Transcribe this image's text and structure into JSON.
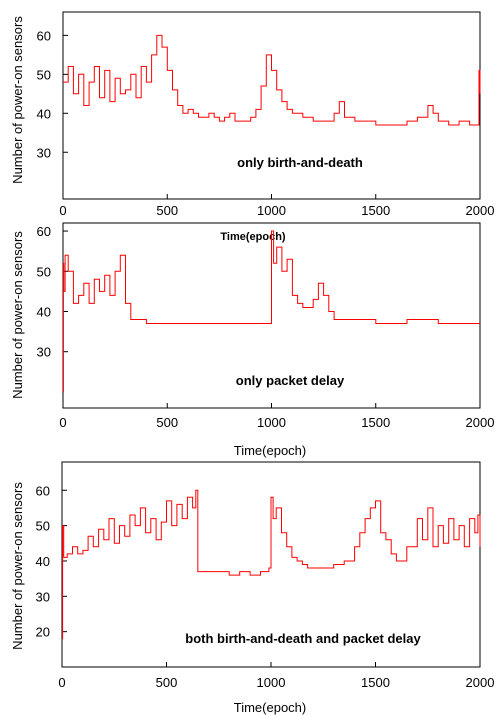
{
  "chart_data": [
    {
      "type": "line",
      "ylabel": "Number of power-on sensors",
      "xlabel": "",
      "annotation": "only birth-and-death",
      "xlim": [
        0,
        2000
      ],
      "ylim": [
        18,
        66
      ],
      "xticks": [
        "0",
        "500",
        "1000",
        "1500",
        "2000"
      ],
      "yticks": [
        "30",
        "40",
        "50",
        "60"
      ],
      "series": [
        {
          "color": "#ff0000",
          "x": [
            0,
            25,
            50,
            75,
            100,
            125,
            150,
            175,
            200,
            225,
            250,
            275,
            300,
            325,
            350,
            375,
            400,
            425,
            450,
            475,
            500,
            525,
            550,
            575,
            600,
            625,
            650,
            675,
            700,
            725,
            750,
            775,
            800,
            825,
            850,
            875,
            900,
            925,
            950,
            975,
            1000,
            1025,
            1050,
            1075,
            1100,
            1150,
            1200,
            1250,
            1300,
            1325,
            1350,
            1400,
            1450,
            1500,
            1550,
            1600,
            1650,
            1700,
            1750,
            1775,
            1800,
            1850,
            1900,
            1950,
            1990,
            1995,
            2000
          ],
          "y": [
            48,
            52,
            45,
            50,
            42,
            48,
            52,
            44,
            51,
            43,
            49,
            45,
            46,
            50,
            44,
            52,
            48,
            55,
            60,
            57,
            51,
            46,
            42,
            40,
            41,
            40,
            39,
            39,
            40,
            39,
            38,
            39,
            40,
            38,
            38,
            38,
            39,
            41,
            47,
            55,
            51,
            46,
            43,
            41,
            40,
            39,
            38,
            38,
            40,
            43,
            39,
            38,
            38,
            37,
            37,
            37,
            38,
            39,
            42,
            40,
            38,
            37,
            38,
            37,
            37,
            51,
            45
          ]
        }
      ]
    },
    {
      "type": "line",
      "ylabel": "Number of power-on sensors",
      "xlabel": "Time(epoch)",
      "annotation": "only packet delay",
      "xlim": [
        0,
        2000
      ],
      "ylim": [
        16,
        62
      ],
      "xticks": [
        "0",
        "500",
        "1000",
        "1500",
        "2000"
      ],
      "yticks": [
        "30",
        "40",
        "50",
        "60"
      ],
      "series": [
        {
          "color": "#ff0000",
          "x": [
            0,
            2,
            4,
            10,
            25,
            50,
            75,
            100,
            125,
            150,
            175,
            200,
            225,
            250,
            275,
            300,
            325,
            350,
            400,
            450,
            500,
            600,
            700,
            800,
            900,
            995,
            1000,
            1010,
            1025,
            1050,
            1075,
            1100,
            1125,
            1150,
            1175,
            1200,
            1225,
            1250,
            1275,
            1300,
            1400,
            1500,
            1600,
            1650,
            1700,
            1800,
            1900,
            2000
          ],
          "y": [
            20,
            52,
            45,
            54,
            50,
            42,
            44,
            47,
            42,
            48,
            45,
            49,
            44,
            50,
            54,
            42,
            38,
            38,
            37,
            37,
            37,
            37,
            37,
            37,
            37,
            37,
            60,
            52,
            56,
            50,
            53,
            44,
            42,
            41,
            41,
            43,
            47,
            44,
            40,
            38,
            38,
            37,
            37,
            38,
            38,
            37,
            37,
            37
          ]
        }
      ]
    },
    {
      "type": "line",
      "ylabel": "Number of power-on sensors",
      "xlabel": "Time(epoch)",
      "annotation": "both birth-and-death and packet delay",
      "xlim": [
        0,
        2000
      ],
      "ylim": [
        10,
        68
      ],
      "xticks": [
        "0",
        "500",
        "1000",
        "1500",
        "2000"
      ],
      "yticks": [
        "20",
        "30",
        "40",
        "50",
        "60"
      ],
      "series": [
        {
          "color": "#ff0000",
          "x": [
            0,
            3,
            8,
            25,
            50,
            75,
            100,
            125,
            150,
            175,
            200,
            225,
            250,
            275,
            300,
            325,
            350,
            375,
            400,
            425,
            450,
            475,
            500,
            525,
            550,
            575,
            600,
            625,
            640,
            650,
            700,
            750,
            800,
            850,
            900,
            950,
            990,
            1000,
            1010,
            1025,
            1050,
            1075,
            1100,
            1125,
            1150,
            1175,
            1200,
            1250,
            1300,
            1350,
            1400,
            1425,
            1450,
            1475,
            1500,
            1525,
            1550,
            1575,
            1600,
            1650,
            1700,
            1725,
            1750,
            1775,
            1800,
            1825,
            1850,
            1875,
            1900,
            1925,
            1950,
            1975,
            1990,
            2000
          ],
          "y": [
            18,
            50,
            41,
            42,
            44,
            42,
            43,
            47,
            44,
            49,
            46,
            52,
            45,
            50,
            47,
            53,
            50,
            55,
            48,
            52,
            46,
            51,
            57,
            50,
            56,
            52,
            58,
            55,
            60,
            37,
            37,
            37,
            36,
            37,
            36,
            37,
            38,
            58,
            52,
            55,
            48,
            44,
            41,
            40,
            39,
            38,
            38,
            38,
            39,
            40,
            44,
            48,
            52,
            55,
            57,
            48,
            46,
            42,
            40,
            44,
            52,
            46,
            55,
            44,
            50,
            45,
            52,
            46,
            50,
            44,
            52,
            48,
            53,
            44
          ]
        }
      ]
    }
  ]
}
